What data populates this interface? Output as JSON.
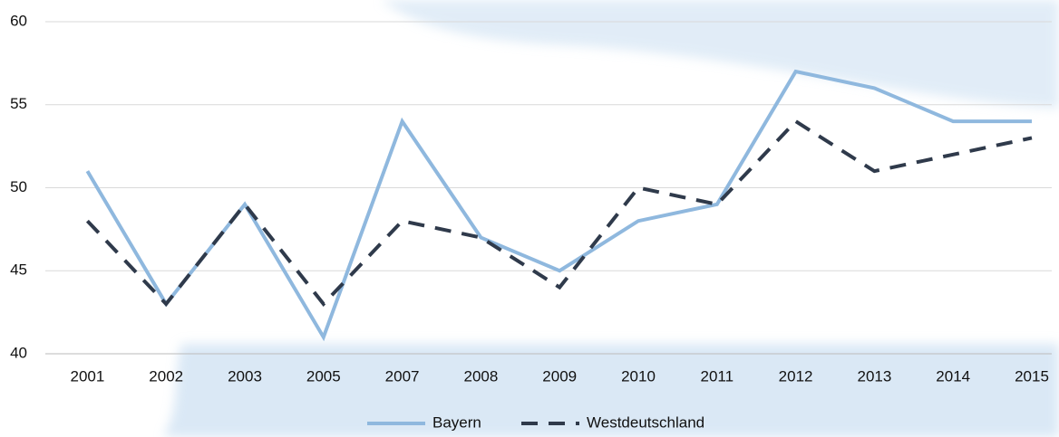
{
  "chart_data": {
    "type": "line",
    "categories": [
      "2001",
      "2002",
      "2003",
      "2005",
      "2007",
      "2008",
      "2009",
      "2010",
      "2011",
      "2012",
      "2013",
      "2014",
      "2015"
    ],
    "series": [
      {
        "name": "Bayern",
        "color": "#8fb8de",
        "dashed": false,
        "values": [
          51,
          43,
          49,
          41,
          54,
          47,
          45,
          48,
          49,
          57,
          56,
          54,
          54
        ]
      },
      {
        "name": "Westdeutschland",
        "color": "#2f3a4b",
        "dashed": true,
        "values": [
          48,
          43,
          49,
          43,
          48,
          47,
          44,
          50,
          49,
          54,
          51,
          52,
          53
        ]
      }
    ],
    "ylim": [
      40,
      60
    ],
    "yticks": [
      40,
      45,
      50,
      55,
      60
    ],
    "grid": true,
    "legend": "bottom"
  }
}
